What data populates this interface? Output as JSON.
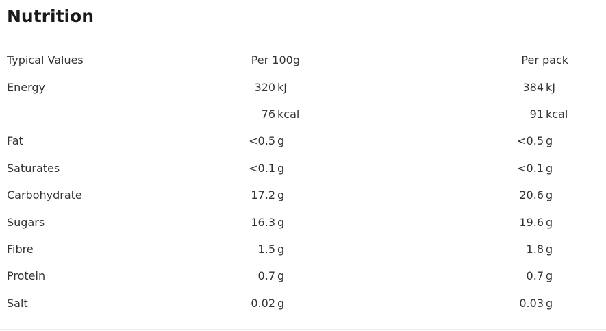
{
  "title": "Nutrition",
  "colors": {
    "title_text": "#1a1a1a",
    "body_text": "#333333",
    "background": "#ffffff",
    "divider": "#ececec"
  },
  "table": {
    "header": {
      "label": "Typical Values",
      "per100g": "Per 100g",
      "perpack": "Per pack"
    },
    "rows": [
      {
        "label": "Energy",
        "per100g": {
          "num": "320",
          "unit": "kJ"
        },
        "perpack": {
          "num": "384",
          "unit": "kJ"
        }
      },
      {
        "label": "",
        "per100g": {
          "num": "76",
          "unit": "kcal"
        },
        "perpack": {
          "num": "91",
          "unit": "kcal"
        }
      },
      {
        "label": "Fat",
        "per100g": {
          "num": "<0.5",
          "unit": "g"
        },
        "perpack": {
          "num": "<0.5",
          "unit": "g"
        }
      },
      {
        "label": "Saturates",
        "per100g": {
          "num": "<0.1",
          "unit": "g"
        },
        "perpack": {
          "num": "<0.1",
          "unit": "g"
        }
      },
      {
        "label": "Carbohydrate",
        "per100g": {
          "num": "17.2",
          "unit": "g"
        },
        "perpack": {
          "num": "20.6",
          "unit": "g"
        }
      },
      {
        "label": "Sugars",
        "per100g": {
          "num": "16.3",
          "unit": "g"
        },
        "perpack": {
          "num": "19.6",
          "unit": "g"
        }
      },
      {
        "label": "Fibre",
        "per100g": {
          "num": "1.5",
          "unit": "g"
        },
        "perpack": {
          "num": "1.8",
          "unit": "g"
        }
      },
      {
        "label": "Protein",
        "per100g": {
          "num": "0.7",
          "unit": "g"
        },
        "perpack": {
          "num": "0.7",
          "unit": "g"
        }
      },
      {
        "label": "Salt",
        "per100g": {
          "num": "0.02",
          "unit": "g"
        },
        "perpack": {
          "num": "0.03",
          "unit": "g"
        }
      }
    ]
  }
}
